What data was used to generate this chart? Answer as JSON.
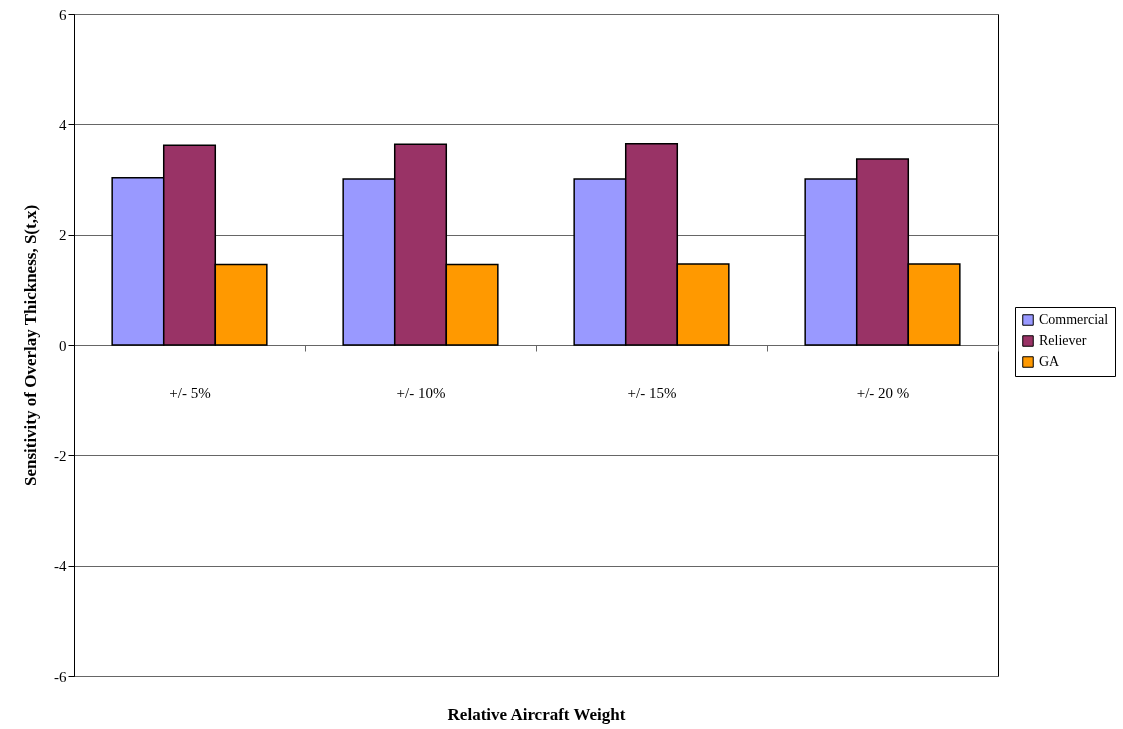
{
  "chart_data": {
    "type": "bar",
    "xlabel": "Relative Aircraft Weight",
    "ylabel": "Sensitivity of Overlay Thickness, S(t,x)",
    "categories": [
      "+/- 5%",
      "+/- 10%",
      "+/- 15%",
      "+/- 20 %"
    ],
    "series": [
      {
        "name": "Commercial",
        "color": "#9999ff",
        "values": [
          3.03,
          3.01,
          3.01,
          3.01
        ]
      },
      {
        "name": "Reliever",
        "color": "#993366",
        "values": [
          3.62,
          3.64,
          3.65,
          3.37
        ]
      },
      {
        "name": "GA",
        "color": "#ff9900",
        "values": [
          1.46,
          1.46,
          1.47,
          1.47
        ]
      }
    ],
    "ylim": [
      -6,
      6
    ],
    "yticks": [
      -6,
      -4,
      -2,
      0,
      2,
      4,
      6
    ],
    "grid": "y",
    "legend": "right"
  }
}
